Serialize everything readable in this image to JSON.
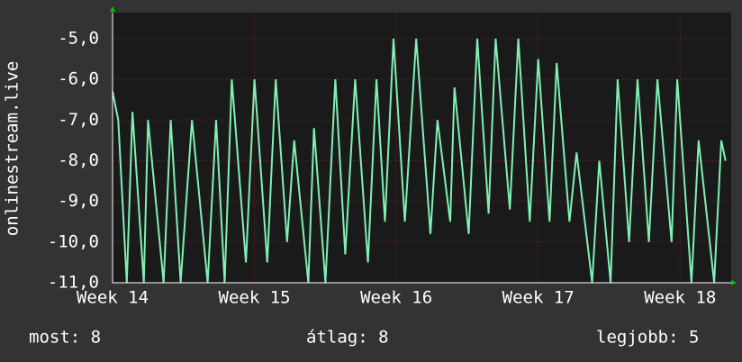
{
  "chart_data": {
    "type": "line",
    "y_label": "onlinestream.live",
    "x": [
      14.0,
      14.04,
      14.1,
      14.14,
      14.22,
      14.25,
      14.36,
      14.41,
      14.48,
      14.56,
      14.67,
      14.73,
      14.79,
      14.84,
      14.94,
      15.0,
      15.09,
      15.15,
      15.23,
      15.28,
      15.38,
      15.42,
      15.5,
      15.57,
      15.64,
      15.71,
      15.8,
      15.86,
      15.92,
      15.98,
      16.06,
      16.14,
      16.24,
      16.29,
      16.38,
      16.41,
      16.51,
      16.57,
      16.65,
      16.7,
      16.8,
      16.86,
      16.94,
      17.0,
      17.08,
      17.13,
      17.22,
      17.27,
      17.38,
      17.43,
      17.51,
      17.56,
      17.64,
      17.7,
      17.78,
      17.84,
      17.94,
      17.98,
      18.08,
      18.13,
      18.24,
      18.29,
      18.32
    ],
    "series": [
      {
        "name": "onlinestream.live",
        "color": "#7ff0b4",
        "values": [
          -6.3,
          -7,
          -11,
          -6.8,
          -11,
          -7,
          -11,
          -7,
          -11,
          -7,
          -11,
          -7,
          -11,
          -6,
          -10.5,
          -6,
          -10.5,
          -6,
          -10,
          -7.5,
          -11,
          -7.2,
          -11,
          -6,
          -10.3,
          -6,
          -10.5,
          -6,
          -9.5,
          -5,
          -9.5,
          -5,
          -9.8,
          -7,
          -9.5,
          -6.2,
          -9.8,
          -5,
          -9.3,
          -5,
          -9.2,
          -5,
          -9.5,
          -5.5,
          -9.5,
          -5.6,
          -9.5,
          -7.8,
          -11,
          -8,
          -11,
          -6,
          -10,
          -6,
          -10,
          -6,
          -10,
          -6,
          -11,
          -7.5,
          -11,
          -7.5,
          -8
        ]
      }
    ],
    "xlim": [
      14,
      18.36
    ],
    "xticks": [
      {
        "value": 14,
        "label": "Week 14"
      },
      {
        "value": 15,
        "label": "Week 15"
      },
      {
        "value": 16,
        "label": "Week 16"
      },
      {
        "value": 17,
        "label": "Week 17"
      },
      {
        "value": 18,
        "label": "Week 18"
      }
    ],
    "ylim": [
      -11,
      -4.36
    ],
    "yticks": [
      {
        "value": -11,
        "label": "-11,0"
      },
      {
        "value": -10,
        "label": "-10,0"
      },
      {
        "value": -9,
        "label": "-9,0"
      },
      {
        "value": -8,
        "label": "-8,0"
      },
      {
        "value": -7,
        "label": "-7,0"
      },
      {
        "value": -6,
        "label": "-6,0"
      },
      {
        "value": -5,
        "label": "-5,0"
      }
    ],
    "grid": true,
    "footer": [
      "most: 8",
      "átlag: 8",
      "legjobb: 5"
    ]
  }
}
